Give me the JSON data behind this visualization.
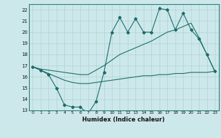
{
  "xlabel": "Humidex (Indice chaleur)",
  "background_color": "#cde8ea",
  "line_color": "#1a6b6b",
  "x_values": [
    0,
    1,
    2,
    3,
    4,
    5,
    6,
    7,
    8,
    9,
    10,
    11,
    12,
    13,
    14,
    15,
    16,
    17,
    18,
    19,
    20,
    21,
    22,
    23
  ],
  "line1_y": [
    16.9,
    16.6,
    16.2,
    15.0,
    13.5,
    13.3,
    13.3,
    12.7,
    13.8,
    16.4,
    20.0,
    21.3,
    20.0,
    21.2,
    20.0,
    20.0,
    22.1,
    22.0,
    20.2,
    21.7,
    20.2,
    19.4,
    18.0,
    16.5
  ],
  "line2_y": [
    16.9,
    16.7,
    16.6,
    16.5,
    16.4,
    16.3,
    16.2,
    16.2,
    16.6,
    17.0,
    17.5,
    18.0,
    18.3,
    18.6,
    18.9,
    19.2,
    19.6,
    20.0,
    20.2,
    20.5,
    20.8,
    19.5,
    18.0,
    16.5
  ],
  "line3_y": [
    16.9,
    16.6,
    16.3,
    16.0,
    15.7,
    15.5,
    15.4,
    15.4,
    15.5,
    15.6,
    15.7,
    15.8,
    15.9,
    16.0,
    16.1,
    16.1,
    16.2,
    16.2,
    16.3,
    16.3,
    16.4,
    16.4,
    16.4,
    16.5
  ],
  "ylim": [
    13,
    22.5
  ],
  "yticks": [
    13,
    14,
    15,
    16,
    17,
    18,
    19,
    20,
    21,
    22
  ],
  "xlim": [
    -0.5,
    23.5
  ],
  "xticks": [
    0,
    1,
    2,
    3,
    4,
    5,
    6,
    7,
    8,
    9,
    10,
    11,
    12,
    13,
    14,
    15,
    16,
    17,
    18,
    19,
    20,
    21,
    22,
    23
  ]
}
